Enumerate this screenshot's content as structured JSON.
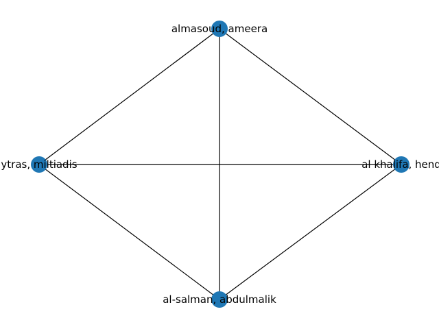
{
  "graph": {
    "node_color": "#1f77b4",
    "edge_color": "#000000",
    "nodes": [
      {
        "id": "almasoud",
        "label": "almasoud, ameera"
      },
      {
        "id": "alkhalifa",
        "label": "al khalifa, hend"
      },
      {
        "id": "alsalman",
        "label": "al-salman, abdulmalik"
      },
      {
        "id": "ytras",
        "label": "ytras, miltiadis"
      }
    ],
    "edges": [
      [
        "almasoud",
        "ytras"
      ],
      [
        "almasoud",
        "alkhalifa"
      ],
      [
        "almasoud",
        "alsalman"
      ],
      [
        "ytras",
        "alkhalifa"
      ],
      [
        "ytras",
        "alsalman"
      ],
      [
        "alkhalifa",
        "alsalman"
      ]
    ]
  }
}
